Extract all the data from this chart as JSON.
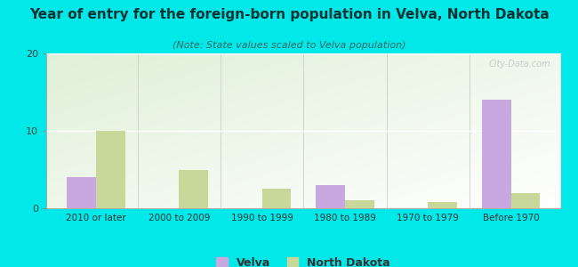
{
  "title": "Year of entry for the foreign-born population in Velva, North Dakota",
  "subtitle": "(Note: State values scaled to Velva population)",
  "categories": [
    "2010 or later",
    "2000 to 2009",
    "1990 to 1999",
    "1980 to 1989",
    "1970 to 1979",
    "Before 1970"
  ],
  "velva_values": [
    4,
    0,
    0,
    3,
    0,
    14
  ],
  "nd_values": [
    10,
    5,
    2.5,
    1,
    0.8,
    2
  ],
  "velva_color": "#c9a8e0",
  "nd_color": "#c8d89a",
  "background_color": "#00e8e8",
  "ylim": [
    0,
    20
  ],
  "yticks": [
    0,
    10,
    20
  ],
  "bar_width": 0.35,
  "title_fontsize": 11,
  "subtitle_fontsize": 8,
  "legend_labels": [
    "Velva",
    "North Dakota"
  ],
  "watermark": "City-Data.com"
}
